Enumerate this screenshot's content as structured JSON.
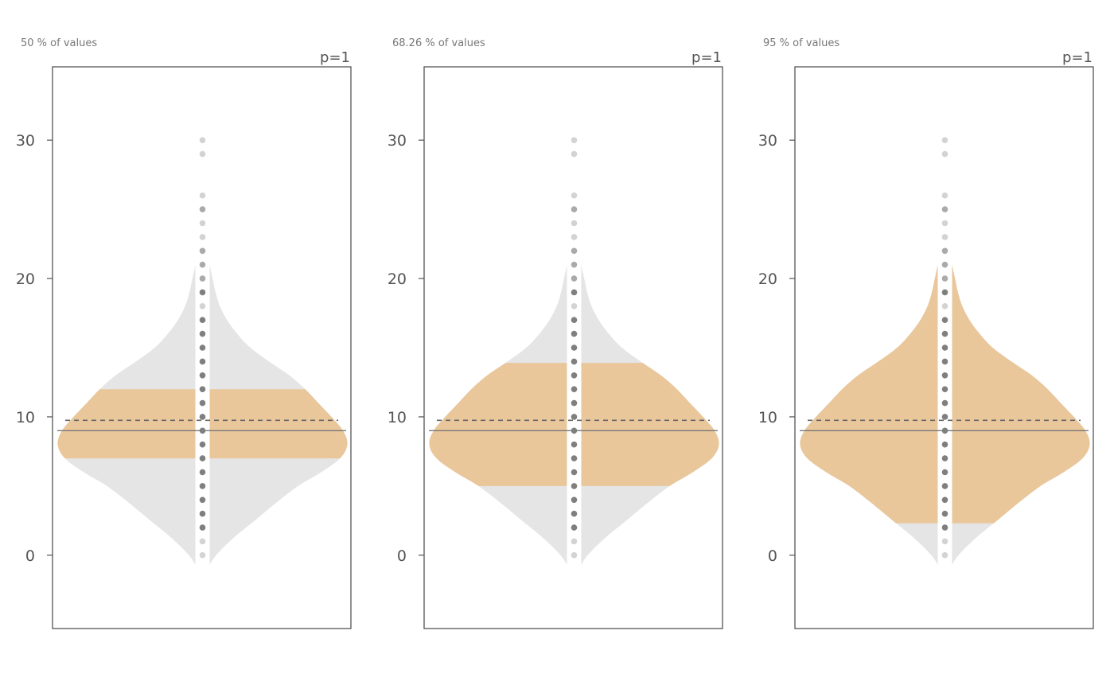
{
  "chart_data": {
    "type": "violin",
    "ylim": [
      -5.3,
      35.3
    ],
    "yticks": [
      0,
      10,
      20,
      30
    ],
    "grid": false,
    "colors": {
      "violin_fill": "#e5e5e5",
      "interval_fill": "#e9c79b",
      "frame": "#555555",
      "median_line": "#777777",
      "mean_line": "#666666",
      "dot_light": "#d3d3d3",
      "dot_mid": "#aaaaaa",
      "dot_dark": "#7f7f7f",
      "strip": "#ffffff"
    },
    "points": [
      0,
      1,
      2,
      3,
      4,
      5,
      6,
      7,
      8,
      9,
      10,
      11,
      12,
      13,
      14,
      15,
      16,
      17,
      18,
      19,
      20,
      21,
      22,
      23,
      24,
      25,
      26,
      29,
      30
    ],
    "median": 9,
    "mean": 9.75,
    "density": [
      [
        -2.7,
        0.0
      ],
      [
        -1.5,
        0.02
      ],
      [
        -0.5,
        0.06
      ],
      [
        0.3,
        0.12
      ],
      [
        1.3,
        0.22
      ],
      [
        2.5,
        0.36
      ],
      [
        3.8,
        0.51
      ],
      [
        5.0,
        0.66
      ],
      [
        6.0,
        0.82
      ],
      [
        7.0,
        0.95
      ],
      [
        8.0,
        1.0
      ],
      [
        9.0,
        0.97
      ],
      [
        10.0,
        0.89
      ],
      [
        11.0,
        0.8
      ],
      [
        12.0,
        0.71
      ],
      [
        13.0,
        0.6
      ],
      [
        14.0,
        0.46
      ],
      [
        15.0,
        0.33
      ],
      [
        16.0,
        0.24
      ],
      [
        17.0,
        0.17
      ],
      [
        18.0,
        0.12
      ],
      [
        19.0,
        0.09
      ],
      [
        20.0,
        0.07
      ],
      [
        21.0,
        0.05
      ],
      [
        22.0,
        0.04
      ],
      [
        23.5,
        0.03
      ],
      [
        25.5,
        0.025
      ],
      [
        27.5,
        0.015
      ],
      [
        30.0,
        0.01
      ],
      [
        32.8,
        0.0
      ]
    ],
    "panels": [
      {
        "subtitle": "50 % of values",
        "p_label": "p=1",
        "interval": [
          7.0,
          12.0
        ],
        "dots": [
          {
            "y": 0,
            "shade": "light"
          },
          {
            "y": 1,
            "shade": "light"
          },
          {
            "y": 2,
            "shade": "dark"
          },
          {
            "y": 3,
            "shade": "dark"
          },
          {
            "y": 4,
            "shade": "dark"
          },
          {
            "y": 5,
            "shade": "dark"
          },
          {
            "y": 6,
            "shade": "dark"
          },
          {
            "y": 7,
            "shade": "dark"
          },
          {
            "y": 8,
            "shade": "dark"
          },
          {
            "y": 9,
            "shade": "dark"
          },
          {
            "y": 10,
            "shade": "dark"
          },
          {
            "y": 11,
            "shade": "dark"
          },
          {
            "y": 12,
            "shade": "dark"
          },
          {
            "y": 13,
            "shade": "dark"
          },
          {
            "y": 14,
            "shade": "dark"
          },
          {
            "y": 15,
            "shade": "dark"
          },
          {
            "y": 16,
            "shade": "dark"
          },
          {
            "y": 17,
            "shade": "dark"
          },
          {
            "y": 18,
            "shade": "light"
          },
          {
            "y": 19,
            "shade": "dark"
          },
          {
            "y": 20,
            "shade": "mid"
          },
          {
            "y": 21,
            "shade": "mid"
          },
          {
            "y": 22,
            "shade": "mid"
          },
          {
            "y": 23,
            "shade": "light"
          },
          {
            "y": 24,
            "shade": "light"
          },
          {
            "y": 25,
            "shade": "mid"
          },
          {
            "y": 26,
            "shade": "light"
          },
          {
            "y": 29,
            "shade": "light"
          },
          {
            "y": 30,
            "shade": "light"
          }
        ]
      },
      {
        "subtitle": "68.26 % of values",
        "p_label": "p=1",
        "interval": [
          5.0,
          13.9
        ],
        "dots": [
          {
            "y": 0,
            "shade": "light"
          },
          {
            "y": 1,
            "shade": "light"
          },
          {
            "y": 2,
            "shade": "dark"
          },
          {
            "y": 3,
            "shade": "dark"
          },
          {
            "y": 4,
            "shade": "dark"
          },
          {
            "y": 5,
            "shade": "dark"
          },
          {
            "y": 6,
            "shade": "dark"
          },
          {
            "y": 7,
            "shade": "dark"
          },
          {
            "y": 8,
            "shade": "dark"
          },
          {
            "y": 9,
            "shade": "dark"
          },
          {
            "y": 10,
            "shade": "dark"
          },
          {
            "y": 11,
            "shade": "dark"
          },
          {
            "y": 12,
            "shade": "dark"
          },
          {
            "y": 13,
            "shade": "dark"
          },
          {
            "y": 14,
            "shade": "dark"
          },
          {
            "y": 15,
            "shade": "dark"
          },
          {
            "y": 16,
            "shade": "dark"
          },
          {
            "y": 17,
            "shade": "dark"
          },
          {
            "y": 18,
            "shade": "light"
          },
          {
            "y": 19,
            "shade": "dark"
          },
          {
            "y": 20,
            "shade": "mid"
          },
          {
            "y": 21,
            "shade": "mid"
          },
          {
            "y": 22,
            "shade": "mid"
          },
          {
            "y": 23,
            "shade": "light"
          },
          {
            "y": 24,
            "shade": "light"
          },
          {
            "y": 25,
            "shade": "mid"
          },
          {
            "y": 26,
            "shade": "light"
          },
          {
            "y": 29,
            "shade": "light"
          },
          {
            "y": 30,
            "shade": "light"
          }
        ]
      },
      {
        "subtitle": "95 % of values",
        "p_label": "p=1",
        "interval": [
          2.3,
          20.9
        ],
        "dots": [
          {
            "y": 0,
            "shade": "light"
          },
          {
            "y": 1,
            "shade": "light"
          },
          {
            "y": 2,
            "shade": "dark"
          },
          {
            "y": 3,
            "shade": "dark"
          },
          {
            "y": 4,
            "shade": "dark"
          },
          {
            "y": 5,
            "shade": "dark"
          },
          {
            "y": 6,
            "shade": "dark"
          },
          {
            "y": 7,
            "shade": "dark"
          },
          {
            "y": 8,
            "shade": "dark"
          },
          {
            "y": 9,
            "shade": "dark"
          },
          {
            "y": 10,
            "shade": "dark"
          },
          {
            "y": 11,
            "shade": "dark"
          },
          {
            "y": 12,
            "shade": "dark"
          },
          {
            "y": 13,
            "shade": "dark"
          },
          {
            "y": 14,
            "shade": "dark"
          },
          {
            "y": 15,
            "shade": "dark"
          },
          {
            "y": 16,
            "shade": "dark"
          },
          {
            "y": 17,
            "shade": "dark"
          },
          {
            "y": 18,
            "shade": "light"
          },
          {
            "y": 19,
            "shade": "dark"
          },
          {
            "y": 20,
            "shade": "mid"
          },
          {
            "y": 21,
            "shade": "mid"
          },
          {
            "y": 22,
            "shade": "mid"
          },
          {
            "y": 23,
            "shade": "light"
          },
          {
            "y": 24,
            "shade": "light"
          },
          {
            "y": 25,
            "shade": "mid"
          },
          {
            "y": 26,
            "shade": "light"
          },
          {
            "y": 29,
            "shade": "light"
          },
          {
            "y": 30,
            "shade": "light"
          }
        ]
      }
    ]
  }
}
